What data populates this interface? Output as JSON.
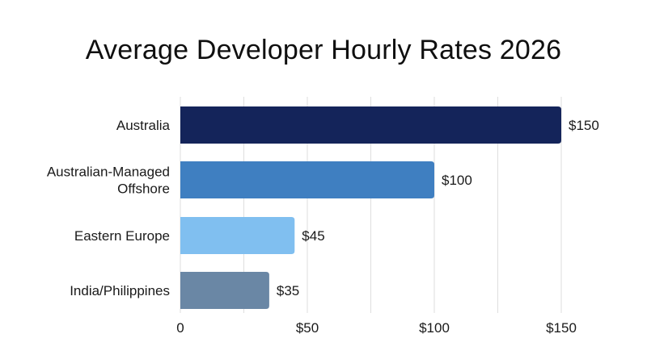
{
  "chart_data": {
    "type": "bar",
    "orientation": "horizontal",
    "title": "Average Developer Hourly Rates 2026",
    "xlabel": "",
    "ylabel": "",
    "xlim": [
      0,
      150
    ],
    "grid": "vertical",
    "legend": "none",
    "categories": [
      "Australia",
      "Australian-Managed Offshore",
      "Eastern Europe",
      "India/Philippines"
    ],
    "category_lines": [
      [
        "Australia"
      ],
      [
        "Australian-Managed",
        "Offshore"
      ],
      [
        "Eastern Europe"
      ],
      [
        "India/Philippines"
      ]
    ],
    "values": [
      150,
      100,
      45,
      35
    ],
    "value_labels": [
      "$150",
      "$100",
      "$45",
      "$35"
    ],
    "bar_colors": [
      "#14245a",
      "#3f7fc1",
      "#80bff0",
      "#6a87a5"
    ],
    "x_ticks": [
      0,
      50,
      100,
      150
    ],
    "x_tick_labels": [
      "0",
      "$50",
      "$100",
      "$150"
    ],
    "grid_values": [
      0,
      25,
      50,
      75,
      100,
      125,
      150
    ]
  }
}
